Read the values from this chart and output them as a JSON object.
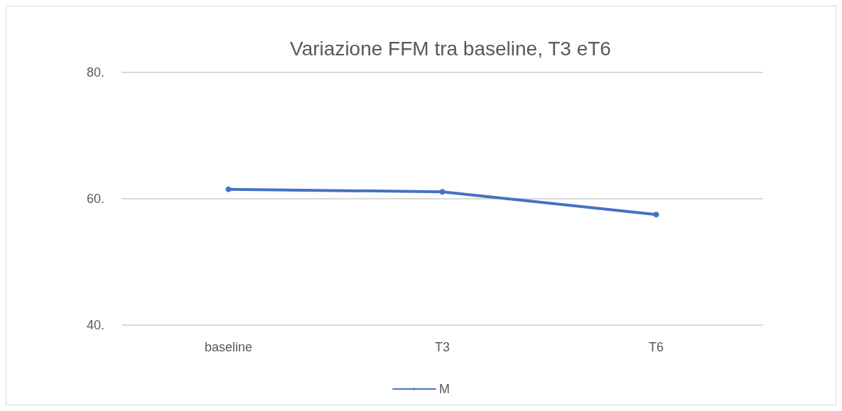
{
  "chart_data": {
    "type": "line",
    "title": "Variazione FFM tra baseline, T3 eT6",
    "categories": [
      "baseline",
      "T3",
      "T6"
    ],
    "series": [
      {
        "name": "M",
        "color": "#4472c4",
        "values": [
          61.5,
          61.1,
          57.5
        ]
      }
    ],
    "ylim": [
      40,
      80
    ],
    "yticks": [
      {
        "value": 40,
        "label": "40."
      },
      {
        "value": 60,
        "label": "60."
      },
      {
        "value": 80,
        "label": "80."
      }
    ],
    "grid": "y",
    "legend": "bottom",
    "marker": "circle",
    "line_style": "solid"
  }
}
